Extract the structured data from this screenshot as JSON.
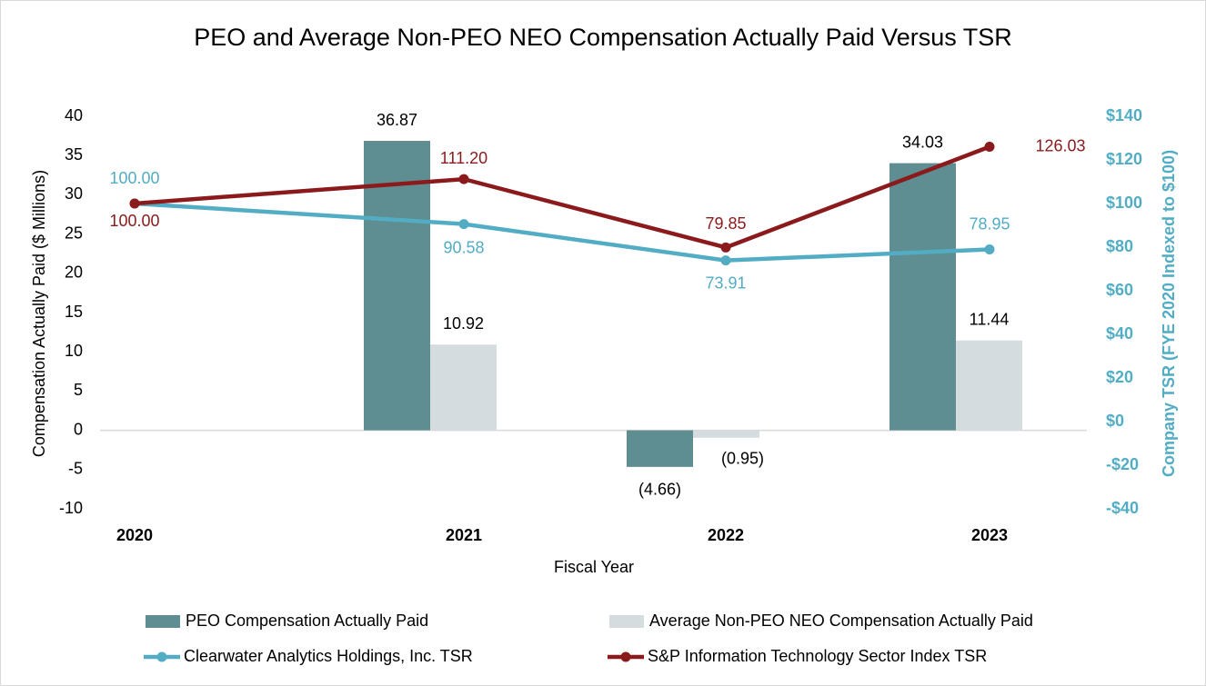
{
  "chart_data": {
    "type": "bar_line",
    "title": "PEO and Average Non-PEO NEO Compensation Actually Paid Versus TSR",
    "x_label": "Fiscal Year",
    "y_label": "Compensation Actually Paid ($ Millions)",
    "y2_label": "Company TSR (FYE 2020 Indexed to $100)",
    "categories": [
      "2020",
      "2021",
      "2022",
      "2023"
    ],
    "ylim": [
      -10,
      40
    ],
    "yticks": [
      -10,
      -5,
      0,
      5,
      10,
      15,
      20,
      25,
      30,
      35,
      40
    ],
    "y2lim": [
      -40,
      140
    ],
    "y2ticks": [
      {
        "value": -40,
        "label": "-$40"
      },
      {
        "value": -20,
        "label": "-$20"
      },
      {
        "value": 0,
        "label": "$0"
      },
      {
        "value": 20,
        "label": "$20"
      },
      {
        "value": 40,
        "label": "$40"
      },
      {
        "value": 60,
        "label": "$60"
      },
      {
        "value": 80,
        "label": "$80"
      },
      {
        "value": 100,
        "label": "$100"
      },
      {
        "value": 120,
        "label": "$120"
      },
      {
        "value": 140,
        "label": "$140"
      }
    ],
    "series": [
      {
        "name": "PEO Compensation Actually Paid",
        "kind": "bar",
        "color": "#5f8e92",
        "values": [
          null,
          36.87,
          -4.66,
          34.03
        ],
        "value_labels": [
          null,
          "36.87",
          "(4.66)",
          "34.03"
        ]
      },
      {
        "name": "Average Non-PEO NEO Compensation Actually Paid",
        "kind": "bar",
        "color": "#d4dcdf",
        "values": [
          null,
          10.92,
          -0.95,
          11.44
        ],
        "value_labels": [
          null,
          "10.92",
          "(0.95)",
          "11.44"
        ]
      },
      {
        "name": "Clearwater Analytics Holdings, Inc. TSR",
        "kind": "line",
        "axis": "y2",
        "color": "#52adc4",
        "values": [
          100,
          90.58,
          73.91,
          78.95
        ],
        "value_labels": [
          "100.00",
          "90.58",
          "73.91",
          "78.95"
        ]
      },
      {
        "name": "S&P Information Technology Sector Index TSR",
        "kind": "line",
        "axis": "y2",
        "color": "#8b1a1c",
        "values": [
          100,
          111.2,
          79.85,
          126.03
        ],
        "value_labels": [
          "100.00",
          "111.20",
          "79.85",
          "126.03"
        ]
      }
    ]
  }
}
